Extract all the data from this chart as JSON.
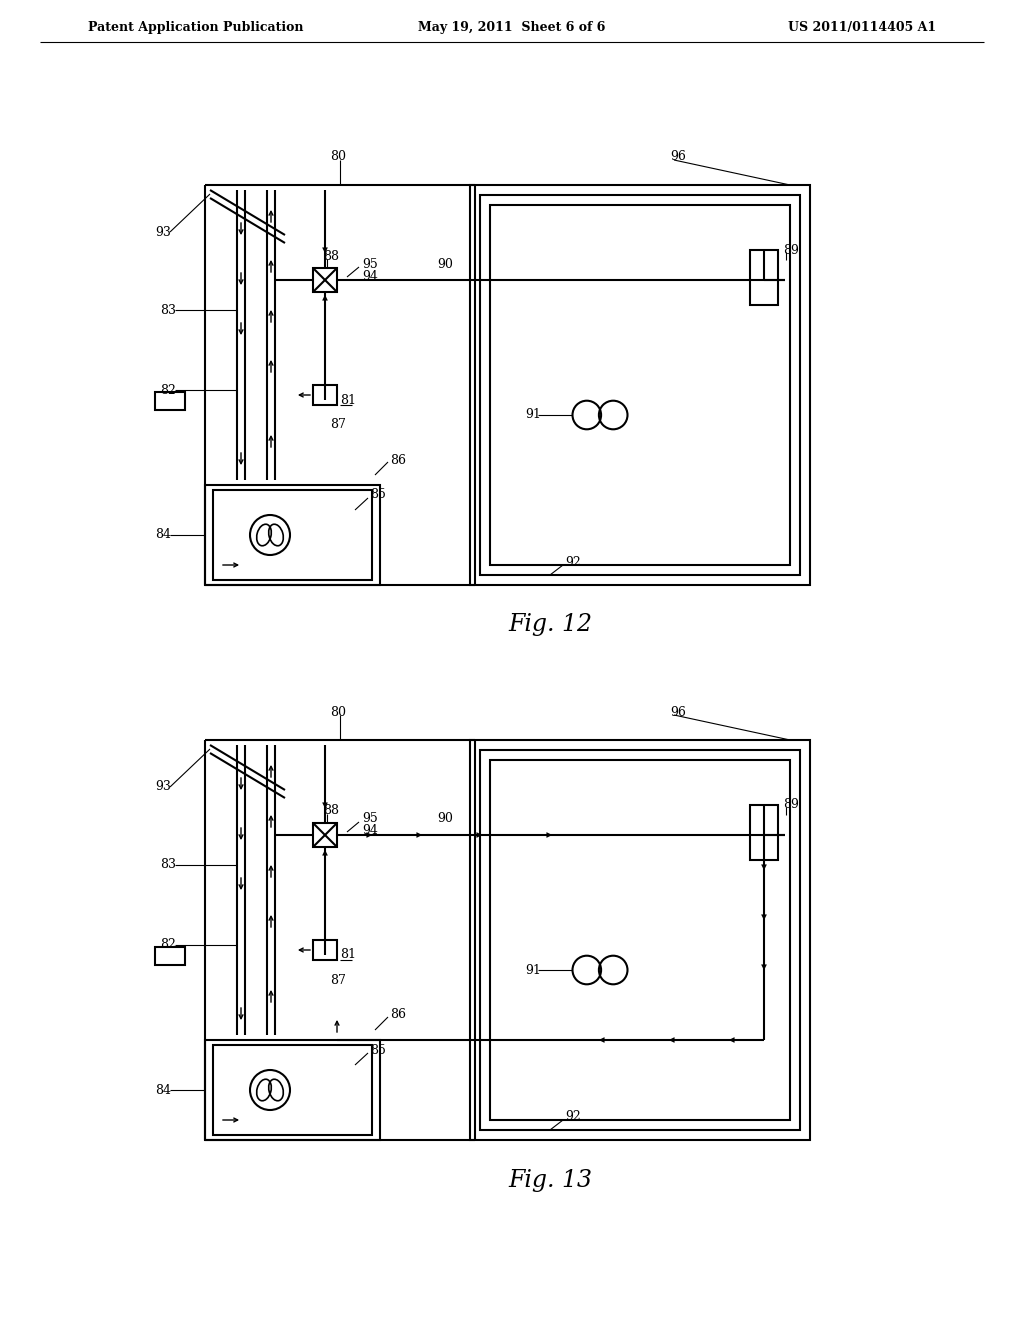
{
  "bg_color": "#ffffff",
  "line_color": "#000000",
  "header_left": "Patent Application Publication",
  "header_mid": "May 19, 2011  Sheet 6 of 6",
  "header_right": "US 2011/0114405 A1",
  "fig12_caption": "Fig. 12",
  "fig13_caption": "Fig. 13"
}
